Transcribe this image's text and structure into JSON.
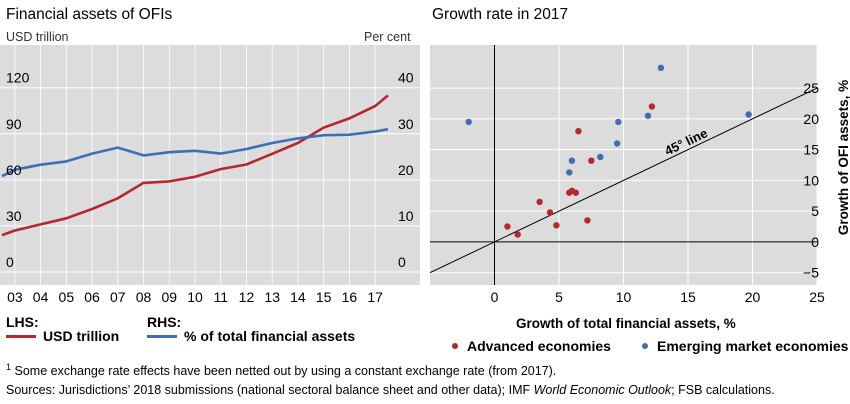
{
  "left_chart": {
    "title": "Financial assets of OFIs",
    "lhs_unit": "USD trillion",
    "rhs_unit": "Per cent",
    "legend": {
      "lhs_label": "LHS:",
      "rhs_label": "RHS:",
      "usd_label": "USD trillion",
      "pct_label": "% of total financial assets"
    }
  },
  "right_chart": {
    "title": "Growth rate in 2017",
    "xlabel": "Growth of total financial assets, %",
    "ylabel": "Growth of OFI assets, %",
    "line_label": "45° line",
    "legend": {
      "advanced": "Advanced economies",
      "emerging": "Emerging market economies"
    }
  },
  "footnote": {
    "mark": "1",
    "text": " Some exchange rate effects have been netted out by using a constant exchange rate (from 2017).",
    "sources_prefix": "Sources: Jurisdictions’ 2018 submissions (national sectoral balance sheet and other data); IMF ",
    "sources_italic": "World Economic Outlook",
    "sources_suffix": "; FSB calculations."
  },
  "colors": {
    "red": "#b5282e",
    "blue": "#3e6fb0",
    "panel": "#dcdcdc",
    "grid": "#ffffff"
  },
  "chart_data": [
    {
      "type": "line",
      "title": "Financial assets of OFIs",
      "categories": [
        "03",
        "04",
        "05",
        "06",
        "07",
        "08",
        "09",
        "10",
        "11",
        "12",
        "13",
        "14",
        "15",
        "16",
        "17"
      ],
      "x": [
        2002.5,
        2003,
        2004,
        2005,
        2006,
        2007,
        2008,
        2009,
        2010,
        2011,
        2012,
        2013,
        2014,
        2015,
        2016,
        2017,
        2017.5
      ],
      "lhs": {
        "ylim": [
          0,
          140
        ],
        "ticks": [
          0,
          30,
          60,
          90,
          120
        ]
      },
      "rhs": {
        "ylim": [
          0,
          46.67
        ],
        "ticks": [
          0,
          10,
          20,
          30,
          40
        ]
      },
      "series": [
        {
          "name": "USD trillion",
          "axis": "lhs",
          "color": "#b5282e",
          "values": [
            24,
            27,
            31,
            35,
            41,
            48,
            58,
            59,
            62,
            67,
            70,
            77,
            84,
            94,
            100,
            108,
            115
          ]
        },
        {
          "name": "% of total financial assets",
          "axis": "rhs",
          "color": "#3e6fb0",
          "values": [
            20.8,
            22.2,
            23.3,
            24.0,
            25.7,
            27.0,
            25.3,
            26.0,
            26.3,
            25.7,
            26.7,
            28.0,
            29.0,
            29.7,
            29.8,
            30.5,
            31.0
          ]
        }
      ],
      "grid": true
    },
    {
      "type": "scatter",
      "title": "Growth rate in 2017",
      "xlabel": "Growth of total financial assets, %",
      "ylabel": "Growth of OFI assets, %",
      "xlim": [
        -5,
        25
      ],
      "ylim": [
        -7,
        32
      ],
      "xticks": [
        0,
        5,
        10,
        15,
        20,
        25
      ],
      "yticks": [
        -5,
        0,
        5,
        10,
        15,
        20,
        25
      ],
      "reference_line": "y = x",
      "series": [
        {
          "name": "Advanced economies",
          "color": "#b5282e",
          "points": [
            [
              1.0,
              2.5
            ],
            [
              1.8,
              1.2
            ],
            [
              3.5,
              6.5
            ],
            [
              4.3,
              4.8
            ],
            [
              4.8,
              2.7
            ],
            [
              5.8,
              8.0
            ],
            [
              6.0,
              8.3
            ],
            [
              6.3,
              8.0
            ],
            [
              6.5,
              18.0
            ],
            [
              7.2,
              3.5
            ],
            [
              7.5,
              13.2
            ],
            [
              12.2,
              22.0
            ]
          ]
        },
        {
          "name": "Emerging market economies",
          "color": "#3e6fb0",
          "points": [
            [
              -2.0,
              19.5
            ],
            [
              5.8,
              11.3
            ],
            [
              6.0,
              13.2
            ],
            [
              8.2,
              13.8
            ],
            [
              9.5,
              16.0
            ],
            [
              9.6,
              19.5
            ],
            [
              11.9,
              20.5
            ],
            [
              12.9,
              28.3
            ],
            [
              19.7,
              20.7
            ]
          ]
        }
      ],
      "grid": true
    }
  ]
}
